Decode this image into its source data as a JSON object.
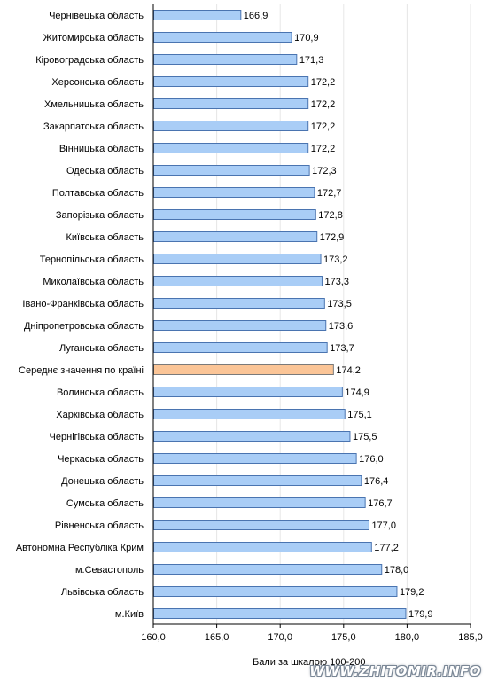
{
  "chart_data": {
    "type": "bar",
    "orientation": "horizontal",
    "categories": [
      "Чернівецька область",
      "Житомирська область",
      "Кіровоградська область",
      "Херсонська область",
      "Хмельницька область",
      "Закарпатська область",
      "Вінницька область",
      "Одеська область",
      "Полтавська область",
      "Запорізька область",
      "Київська область",
      "Тернопільська область",
      "Миколаївська область",
      "Івано-Франківська область",
      "Дніпропетровська область",
      "Луганська область",
      "Середнє значення по країні",
      "Волинська область",
      "Харківська область",
      "Чернігівська область",
      "Черкаська область",
      "Донецька область",
      "Сумська область",
      "Рівненська область",
      "Автономна Республіка Крим",
      "м.Севастополь",
      "Львівська область",
      "м.Київ"
    ],
    "values": [
      166.9,
      170.9,
      171.3,
      172.2,
      172.2,
      172.2,
      172.2,
      172.3,
      172.7,
      172.8,
      172.9,
      173.2,
      173.3,
      173.5,
      173.6,
      173.7,
      174.2,
      174.9,
      175.1,
      175.5,
      176.0,
      176.4,
      176.7,
      177.0,
      177.2,
      178.0,
      179.2,
      179.9
    ],
    "value_labels": [
      "166,9",
      "170,9",
      "171,3",
      "172,2",
      "172,2",
      "172,2",
      "172,2",
      "172,3",
      "172,7",
      "172,8",
      "172,9",
      "173,2",
      "173,3",
      "173,5",
      "173,6",
      "173,7",
      "174,2",
      "174,9",
      "175,1",
      "175,5",
      "176,0",
      "176,4",
      "176,7",
      "177,0",
      "177,2",
      "178,0",
      "179,2",
      "179,9"
    ],
    "highlight_index": 16,
    "xlim": [
      160,
      185
    ],
    "xticks": [
      160,
      165,
      170,
      175,
      180,
      185
    ],
    "xtick_labels": [
      "160,0",
      "165,0",
      "170,0",
      "175,0",
      "180,0",
      "185,0"
    ],
    "xlabel": "Бали за шкалою 100-200",
    "grid": true,
    "colors": {
      "bar_fill": "#a9cdf6",
      "bar_stroke": "#4a74b0",
      "highlight_fill": "#fbc597",
      "highlight_stroke": "#7a7a7a",
      "grid": "#e6e6e6"
    }
  },
  "watermark": {
    "text": "WWW.ZHITOMIR.INFO"
  }
}
